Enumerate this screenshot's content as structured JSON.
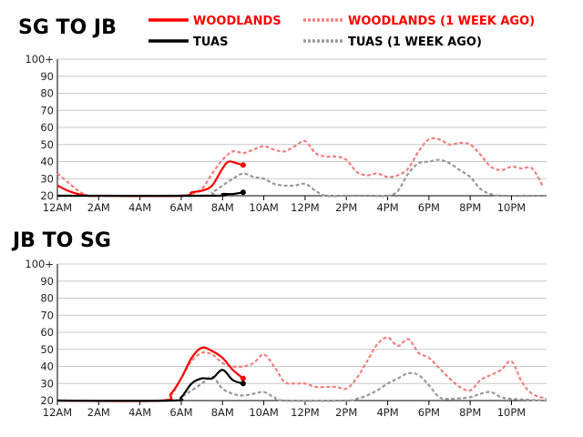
{
  "legend": [
    {
      "label": "WOODLANDS",
      "color": "#ff0000",
      "dashed": false
    },
    {
      "label": "WOODLANDS (1 WEEK AGO)",
      "color": "#f08080",
      "dashed": true
    },
    {
      "label": "TUAS",
      "color": "#000000",
      "dashed": false
    },
    {
      "label": "TUAS (1 WEEK AGO)",
      "color": "#999999",
      "dashed": true
    }
  ],
  "chart_data": [
    {
      "type": "line",
      "title": "SG TO JB",
      "x_tick_labels": [
        "12AM",
        "2AM",
        "4AM",
        "6AM",
        "8AM",
        "10AM",
        "12PM",
        "2PM",
        "4PM",
        "6PM",
        "8PM",
        "10PM"
      ],
      "y_tick_labels": [
        "20",
        "30",
        "40",
        "50",
        "60",
        "70",
        "80",
        "90",
        "100+"
      ],
      "ylim": [
        20,
        100
      ],
      "xlim_hours": [
        0,
        23.7
      ],
      "grid": true,
      "series": [
        {
          "name": "WOODLANDS (1 WEEK AGO)",
          "color": "#f08080",
          "dashed": true,
          "points": [
            [
              0,
              33
            ],
            [
              0.5,
              28
            ],
            [
              1,
              23
            ],
            [
              1.5,
              20
            ],
            [
              2,
              20
            ],
            [
              4,
              20
            ],
            [
              6,
              20
            ],
            [
              6.5,
              21
            ],
            [
              7,
              24
            ],
            [
              7.5,
              33
            ],
            [
              8,
              41
            ],
            [
              8.5,
              46
            ],
            [
              9,
              45
            ],
            [
              9.5,
              47
            ],
            [
              10,
              49
            ],
            [
              10.5,
              47
            ],
            [
              11,
              46
            ],
            [
              11.5,
              49
            ],
            [
              12,
              52
            ],
            [
              12.5,
              45
            ],
            [
              13,
              43
            ],
            [
              13.5,
              43
            ],
            [
              14,
              41
            ],
            [
              14.5,
              34
            ],
            [
              15,
              32
            ],
            [
              15.5,
              33
            ],
            [
              16,
              31
            ],
            [
              16.5,
              32
            ],
            [
              17,
              36
            ],
            [
              17.5,
              46
            ],
            [
              18,
              53
            ],
            [
              18.5,
              53
            ],
            [
              19,
              50
            ],
            [
              19.5,
              51
            ],
            [
              20,
              50
            ],
            [
              20.5,
              44
            ],
            [
              21,
              37
            ],
            [
              21.5,
              35
            ],
            [
              22,
              37
            ],
            [
              22.5,
              36
            ],
            [
              23,
              36
            ],
            [
              23.5,
              26
            ]
          ]
        },
        {
          "name": "TUAS (1 WEEK AGO)",
          "color": "#999999",
          "dashed": true,
          "points": [
            [
              0,
              20
            ],
            [
              7,
              20
            ],
            [
              7.5,
              22
            ],
            [
              8,
              26
            ],
            [
              8.5,
              30
            ],
            [
              9,
              33
            ],
            [
              9.5,
              31
            ],
            [
              10,
              30
            ],
            [
              10.5,
              27
            ],
            [
              11,
              26
            ],
            [
              11.5,
              26
            ],
            [
              12,
              27
            ],
            [
              12.5,
              23
            ],
            [
              13,
              20
            ],
            [
              14,
              20
            ],
            [
              15,
              20
            ],
            [
              16,
              20
            ],
            [
              16.5,
              23
            ],
            [
              17,
              33
            ],
            [
              17.5,
              39
            ],
            [
              18,
              40
            ],
            [
              18.5,
              41
            ],
            [
              19,
              39
            ],
            [
              19.5,
              35
            ],
            [
              20,
              31
            ],
            [
              20.5,
              24
            ],
            [
              21,
              21
            ],
            [
              21.5,
              20
            ],
            [
              23.7,
              20
            ]
          ]
        },
        {
          "name": "WOODLANDS",
          "color": "#ff0000",
          "dashed": false,
          "points": [
            [
              0,
              26
            ],
            [
              0.5,
              23
            ],
            [
              1,
              21
            ],
            [
              1.5,
              20
            ],
            [
              2,
              20
            ],
            [
              6,
              20
            ],
            [
              6.5,
              22
            ],
            [
              7,
              23
            ],
            [
              7.5,
              26
            ],
            [
              8,
              36
            ],
            [
              8.3,
              40
            ],
            [
              8.7,
              39
            ],
            [
              9,
              38
            ]
          ]
        },
        {
          "name": "TUAS",
          "color": "#000000",
          "dashed": false,
          "points": [
            [
              0,
              20
            ],
            [
              7.5,
              20
            ],
            [
              8,
              21
            ],
            [
              8.5,
              21
            ],
            [
              9,
              22
            ]
          ]
        }
      ]
    },
    {
      "type": "line",
      "title": "JB TO SG",
      "x_tick_labels": [
        "12AM",
        "2AM",
        "4AM",
        "6AM",
        "8AM",
        "10AM",
        "12PM",
        "2PM",
        "4PM",
        "6PM",
        "8PM",
        "10PM"
      ],
      "y_tick_labels": [
        "20",
        "30",
        "40",
        "50",
        "60",
        "70",
        "80",
        "90",
        "100+"
      ],
      "ylim": [
        20,
        100
      ],
      "xlim_hours": [
        0,
        23.7
      ],
      "grid": true,
      "series": [
        {
          "name": "WOODLANDS (1 WEEK AGO)",
          "color": "#f08080",
          "dashed": true,
          "points": [
            [
              0,
              20
            ],
            [
              5,
              20
            ],
            [
              5.5,
              23
            ],
            [
              6,
              33
            ],
            [
              6.5,
              43
            ],
            [
              7,
              48
            ],
            [
              7.5,
              47
            ],
            [
              8,
              42
            ],
            [
              8.5,
              40
            ],
            [
              9,
              40
            ],
            [
              9.5,
              42
            ],
            [
              10,
              47
            ],
            [
              10.5,
              40
            ],
            [
              11,
              31
            ],
            [
              11.5,
              30
            ],
            [
              12,
              30
            ],
            [
              12.5,
              28
            ],
            [
              13,
              28
            ],
            [
              13.5,
              28
            ],
            [
              14,
              27
            ],
            [
              14.5,
              33
            ],
            [
              15,
              43
            ],
            [
              15.5,
              53
            ],
            [
              16,
              57
            ],
            [
              16.5,
              52
            ],
            [
              17,
              56
            ],
            [
              17.5,
              48
            ],
            [
              18,
              45
            ],
            [
              18.5,
              39
            ],
            [
              19,
              33
            ],
            [
              19.5,
              28
            ],
            [
              20,
              26
            ],
            [
              20.5,
              32
            ],
            [
              21,
              35
            ],
            [
              21.5,
              38
            ],
            [
              22,
              43
            ],
            [
              22.5,
              31
            ],
            [
              23,
              24
            ],
            [
              23.7,
              21
            ]
          ]
        },
        {
          "name": "TUAS (1 WEEK AGO)",
          "color": "#999999",
          "dashed": true,
          "points": [
            [
              0,
              20
            ],
            [
              5.5,
              20
            ],
            [
              6,
              22
            ],
            [
              6.5,
              26
            ],
            [
              7,
              30
            ],
            [
              7.5,
              34
            ],
            [
              8,
              27
            ],
            [
              8.5,
              24
            ],
            [
              9,
              23
            ],
            [
              9.5,
              24
            ],
            [
              10,
              25
            ],
            [
              10.5,
              22
            ],
            [
              11,
              20
            ],
            [
              14,
              20
            ],
            [
              14.5,
              21
            ],
            [
              15,
              23
            ],
            [
              15.5,
              26
            ],
            [
              16,
              30
            ],
            [
              16.5,
              33
            ],
            [
              17,
              36
            ],
            [
              17.5,
              35
            ],
            [
              18,
              29
            ],
            [
              18.5,
              22
            ],
            [
              19,
              21
            ],
            [
              20,
              22
            ],
            [
              20.5,
              24
            ],
            [
              21,
              25
            ],
            [
              21.5,
              22
            ],
            [
              22,
              21
            ],
            [
              23.7,
              20
            ]
          ]
        },
        {
          "name": "WOODLANDS",
          "color": "#ff0000",
          "dashed": false,
          "points": [
            [
              0,
              20
            ],
            [
              5,
              20
            ],
            [
              5.5,
              24
            ],
            [
              6,
              33
            ],
            [
              6.5,
              45
            ],
            [
              7,
              51
            ],
            [
              7.5,
              49
            ],
            [
              8,
              45
            ],
            [
              8.5,
              38
            ],
            [
              9,
              33
            ]
          ]
        },
        {
          "name": "TUAS",
          "color": "#000000",
          "dashed": false,
          "points": [
            [
              0,
              20
            ],
            [
              5.5,
              20
            ],
            [
              6,
              22
            ],
            [
              6.5,
              30
            ],
            [
              7,
              33
            ],
            [
              7.5,
              33
            ],
            [
              8,
              38
            ],
            [
              8.5,
              32
            ],
            [
              9,
              30
            ]
          ]
        }
      ]
    }
  ]
}
